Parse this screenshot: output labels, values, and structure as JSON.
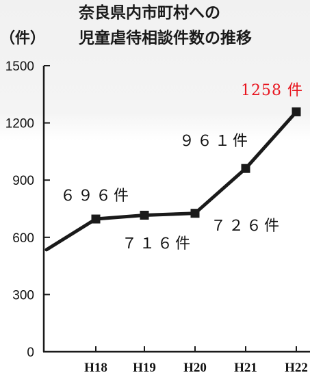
{
  "title_line1": "奈良県内市町村への",
  "title_line2": "児童虐待相談件数の推移",
  "unit_label": "（件）",
  "chart_data": {
    "type": "line",
    "categories": [
      "H18",
      "H19",
      "H20",
      "H21",
      "H22"
    ],
    "values": [
      696,
      716,
      726,
      961,
      1258
    ],
    "ylim": [
      0,
      1500
    ],
    "yticks": [
      0,
      300,
      600,
      900,
      1200,
      1500
    ],
    "start_value": 535,
    "data_labels": [
      "６９６件",
      "７１６件",
      "７２６件",
      "９６１件",
      "1258 件"
    ],
    "highlight_color": "#e8141e",
    "line_color": "#1a1a1a",
    "grid": false,
    "legend": "none"
  }
}
